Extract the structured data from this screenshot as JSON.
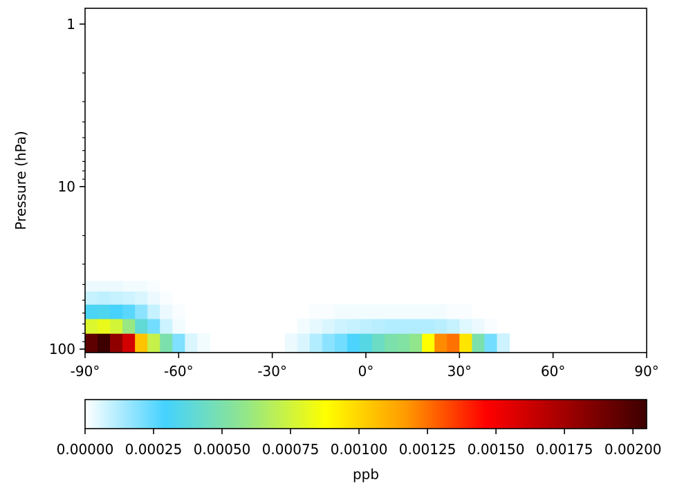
{
  "chart_data": {
    "type": "heatmap",
    "title": "",
    "ylabel": "Pressure (hPa)",
    "xlabel": "",
    "x_axis": {
      "lim": [
        -90,
        90
      ],
      "ticks": [
        -90,
        -60,
        -30,
        0,
        30,
        60,
        90
      ],
      "tick_labels": [
        "-90°",
        "-60°",
        "-30°",
        "0°",
        "30°",
        "60°",
        "90°"
      ]
    },
    "y_axis": {
      "scale": "log",
      "inverted": true,
      "lim": [
        105,
        0.8
      ],
      "ticks": [
        1,
        10,
        100
      ],
      "tick_labels": [
        "1",
        "10",
        "100"
      ]
    },
    "colorbar": {
      "label": "ppb",
      "orientation": "horizontal",
      "range": [
        0,
        0.00205
      ],
      "ticks": [
        0,
        0.00025,
        0.0005,
        0.00075,
        0.001,
        0.00125,
        0.0015,
        0.00175,
        0.002
      ],
      "tick_labels": [
        "0.00000",
        "0.00025",
        "0.00050",
        "0.00075",
        "0.00100",
        "0.00125",
        "0.00150",
        "0.00175",
        "0.00200"
      ],
      "colormap": [
        "#ffffff",
        "#44d2ff",
        "#93e689",
        "#ffff00",
        "#ff9a00",
        "#ff0000",
        "#a00000",
        "#3c0000"
      ]
    },
    "cell_width_deg": 4,
    "lat_start": -90,
    "rows": [
      {
        "p_top": 80,
        "p_bottom": 105,
        "values": [
          0.00195,
          0.0021,
          0.0018,
          0.0016,
          0.00105,
          0.00072,
          0.0005,
          0.0002,
          6e-05,
          2e-05,
          0,
          0,
          0,
          0,
          0,
          0,
          3e-05,
          6e-05,
          0.00012,
          0.00018,
          0.00022,
          0.00028,
          0.00036,
          0.00044,
          0.0005,
          0.00052,
          0.00058,
          0.00088,
          0.0012,
          0.00125,
          0.00095,
          0.0005,
          0.00022,
          8e-05,
          0,
          0,
          0,
          0,
          0,
          0,
          0,
          0,
          0,
          0,
          0
        ]
      },
      {
        "p_top": 65,
        "p_bottom": 80,
        "values": [
          0.00078,
          0.00082,
          0.00076,
          0.0006,
          0.0004,
          0.00022,
          8e-05,
          2e-05,
          0,
          0,
          0,
          0,
          0,
          0,
          0,
          0,
          0,
          2e-05,
          4e-05,
          6e-05,
          8e-05,
          9e-05,
          0.0001,
          0.00011,
          0.00012,
          0.00012,
          0.00012,
          0.00012,
          0.00011,
          9e-05,
          5e-05,
          3e-05,
          1e-05,
          0,
          0,
          0,
          0,
          0,
          0,
          0,
          0,
          0,
          0,
          0,
          0
        ]
      },
      {
        "p_top": 53,
        "p_bottom": 65,
        "values": [
          0.00032,
          0.00033,
          0.0003,
          0.00026,
          0.00018,
          9e-05,
          3e-05,
          1e-05,
          0,
          0,
          0,
          0,
          0,
          0,
          0,
          0,
          0,
          0,
          1e-05,
          1e-05,
          2e-05,
          2e-05,
          2e-05,
          2e-05,
          2e-05,
          2e-05,
          2e-05,
          2e-05,
          2e-05,
          1e-05,
          1e-05,
          0,
          0,
          0,
          0,
          0,
          0,
          0,
          0,
          0,
          0,
          0,
          0,
          0,
          0
        ]
      },
      {
        "p_top": 44,
        "p_bottom": 53,
        "values": [
          9e-05,
          0.0001,
          9e-05,
          8e-05,
          6e-05,
          3e-05,
          1e-05,
          0,
          0,
          0,
          0,
          0,
          0,
          0,
          0,
          0,
          0,
          0,
          0,
          0,
          0,
          0,
          0,
          0,
          0,
          0,
          0,
          0,
          0,
          0,
          0,
          0,
          0,
          0,
          0,
          0,
          0,
          0,
          0,
          0,
          0,
          0,
          0,
          0,
          0
        ]
      },
      {
        "p_top": 38,
        "p_bottom": 44,
        "values": [
          3e-05,
          3e-05,
          3e-05,
          2e-05,
          2e-05,
          1e-05,
          0,
          0,
          0,
          0,
          0,
          0,
          0,
          0,
          0,
          0,
          0,
          0,
          0,
          0,
          0,
          0,
          0,
          0,
          0,
          0,
          0,
          0,
          0,
          0,
          0,
          0,
          0,
          0,
          0,
          0,
          0,
          0,
          0,
          0,
          0,
          0,
          0,
          0,
          0
        ]
      }
    ],
    "grid": false,
    "legend": "none"
  }
}
